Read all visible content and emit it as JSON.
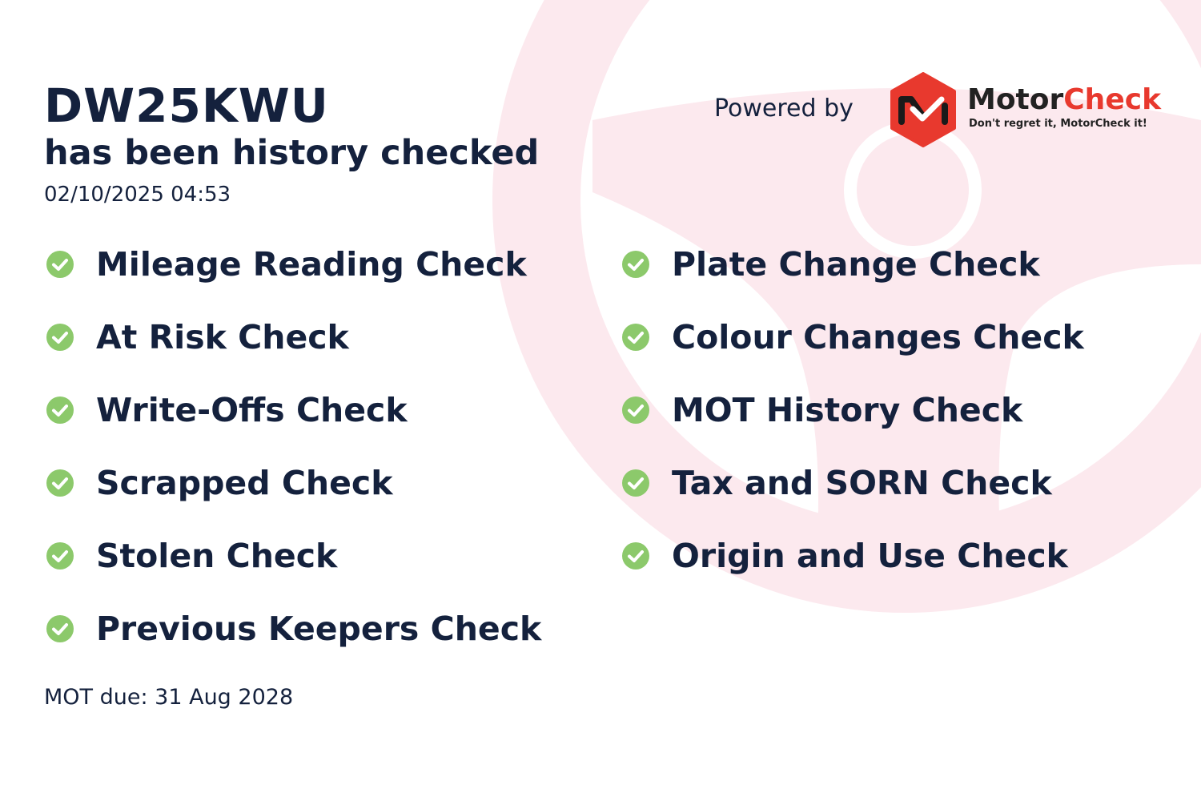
{
  "header": {
    "registration": "DW25KWU",
    "subtitle": "has been history checked",
    "timestamp": "02/10/2025 04:53"
  },
  "branding": {
    "powered_by": "Powered by",
    "brand_part1": "Motor",
    "brand_part2": "Check",
    "tagline": "Don't regret it, MotorCheck it!",
    "brand_color": "#e8392e"
  },
  "checks_left": [
    {
      "label": "Mileage Reading Check",
      "icon": "check-circle-icon"
    },
    {
      "label": "At Risk Check",
      "icon": "check-circle-icon"
    },
    {
      "label": "Write-Offs Check",
      "icon": "check-circle-icon"
    },
    {
      "label": "Scrapped Check",
      "icon": "check-circle-icon"
    },
    {
      "label": "Stolen Check",
      "icon": "check-circle-icon"
    },
    {
      "label": "Previous Keepers Check",
      "icon": "check-circle-icon"
    }
  ],
  "checks_right": [
    {
      "label": "Plate Change Check",
      "icon": "check-circle-icon"
    },
    {
      "label": "Colour Changes Check",
      "icon": "check-circle-icon"
    },
    {
      "label": "MOT History Check",
      "icon": "check-circle-icon"
    },
    {
      "label": "Tax and SORN Check",
      "icon": "check-circle-icon"
    },
    {
      "label": "Origin and Use Check",
      "icon": "check-circle-icon"
    }
  ],
  "footer": {
    "mot_due": "MOT due: 31 Aug 2028"
  },
  "colors": {
    "check_green": "#8cc96b",
    "text": "#14213d",
    "watermark": "#fce9ee"
  }
}
